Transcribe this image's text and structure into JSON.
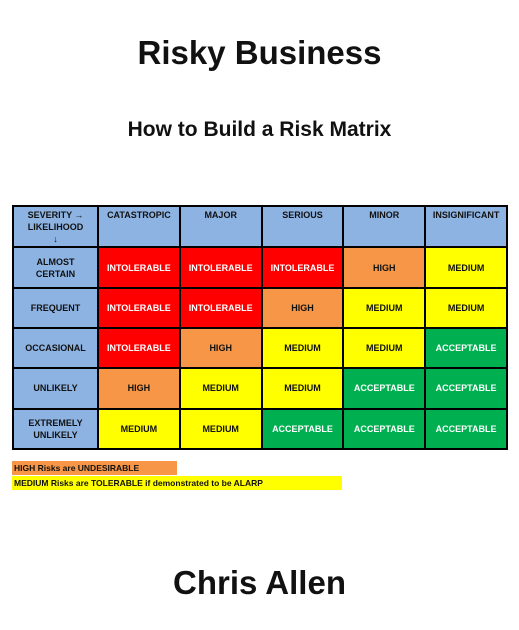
{
  "header": {
    "title": "Risky Business",
    "subtitle": "How to Build a Risk Matrix"
  },
  "matrix": {
    "corner": [
      "SEVERITY →",
      "LIKELIHOOD",
      "↓"
    ],
    "header_fill": "#8db3e2",
    "columns": [
      "CATASTROPIC",
      "MAJOR",
      "SERIOUS",
      "MINOR",
      "INSIGNIFICANT"
    ],
    "rows": [
      {
        "label": "ALMOST CERTAIN",
        "cells": [
          {
            "text": "INTOLERABLE",
            "fill": "#ff0000",
            "ink": "#ffffff"
          },
          {
            "text": "INTOLERABLE",
            "fill": "#ff0000",
            "ink": "#ffffff"
          },
          {
            "text": "INTOLERABLE",
            "fill": "#ff0000",
            "ink": "#ffffff"
          },
          {
            "text": "HIGH",
            "fill": "#f79646",
            "ink": "#111111"
          },
          {
            "text": "MEDIUM",
            "fill": "#ffff00",
            "ink": "#111111"
          }
        ]
      },
      {
        "label": "FREQUENT",
        "cells": [
          {
            "text": "INTOLERABLE",
            "fill": "#ff0000",
            "ink": "#ffffff"
          },
          {
            "text": "INTOLERABLE",
            "fill": "#ff0000",
            "ink": "#ffffff"
          },
          {
            "text": "HIGH",
            "fill": "#f79646",
            "ink": "#111111"
          },
          {
            "text": "MEDIUM",
            "fill": "#ffff00",
            "ink": "#111111"
          },
          {
            "text": "MEDIUM",
            "fill": "#ffff00",
            "ink": "#111111"
          }
        ]
      },
      {
        "label": "OCCASIONAL",
        "cells": [
          {
            "text": "INTOLERABLE",
            "fill": "#ff0000",
            "ink": "#ffffff"
          },
          {
            "text": "HIGH",
            "fill": "#f79646",
            "ink": "#111111"
          },
          {
            "text": "MEDIUM",
            "fill": "#ffff00",
            "ink": "#111111"
          },
          {
            "text": "MEDIUM",
            "fill": "#ffff00",
            "ink": "#111111"
          },
          {
            "text": "ACCEPTABLE",
            "fill": "#00b050",
            "ink": "#ffffff"
          }
        ]
      },
      {
        "label": "UNLIKELY",
        "cells": [
          {
            "text": "HIGH",
            "fill": "#f79646",
            "ink": "#111111"
          },
          {
            "text": "MEDIUM",
            "fill": "#ffff00",
            "ink": "#111111"
          },
          {
            "text": "MEDIUM",
            "fill": "#ffff00",
            "ink": "#111111"
          },
          {
            "text": "ACCEPTABLE",
            "fill": "#00b050",
            "ink": "#ffffff"
          },
          {
            "text": "ACCEPTABLE",
            "fill": "#00b050",
            "ink": "#ffffff"
          }
        ]
      },
      {
        "label": "EXTREMELY UNLIKELY",
        "cells": [
          {
            "text": "MEDIUM",
            "fill": "#ffff00",
            "ink": "#111111"
          },
          {
            "text": "MEDIUM",
            "fill": "#ffff00",
            "ink": "#111111"
          },
          {
            "text": "ACCEPTABLE",
            "fill": "#00b050",
            "ink": "#ffffff"
          },
          {
            "text": "ACCEPTABLE",
            "fill": "#00b050",
            "ink": "#ffffff"
          },
          {
            "text": "ACCEPTABLE",
            "fill": "#00b050",
            "ink": "#ffffff"
          }
        ]
      }
    ]
  },
  "legend": [
    {
      "text": "HIGH Risks are UNDESIRABLE",
      "fill": "#f79646"
    },
    {
      "text": "MEDIUM Risks are TOLERABLE if demonstrated to be ALARP",
      "fill": "#ffff00"
    }
  ],
  "author": "Chris Allen"
}
